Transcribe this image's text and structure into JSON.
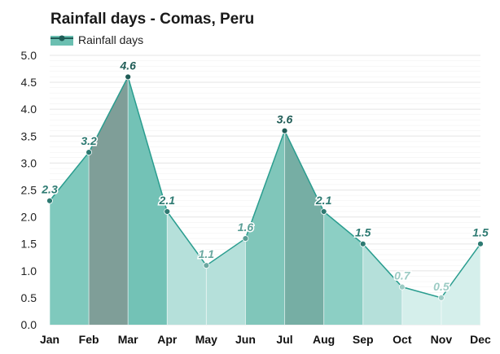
{
  "chart_data": {
    "type": "area",
    "title": "Rainfall days - Comas, Peru",
    "xlabel": "",
    "ylabel": "",
    "categories": [
      "Jan",
      "Feb",
      "Mar",
      "Apr",
      "May",
      "Jun",
      "Jul",
      "Aug",
      "Sep",
      "Oct",
      "Nov",
      "Dec"
    ],
    "series": [
      {
        "name": "Rainfall days",
        "values": [
          2.3,
          3.2,
          4.6,
          2.1,
          1.1,
          1.6,
          3.6,
          2.1,
          1.5,
          0.7,
          0.5,
          1.5
        ]
      }
    ],
    "ylim": [
      0,
      5.0
    ],
    "yticks": [
      "0.0",
      "0.5",
      "1.0",
      "1.5",
      "2.0",
      "2.5",
      "3.0",
      "3.5",
      "4.0",
      "4.5",
      "5.0"
    ],
    "grid": true,
    "legend": "top-left",
    "colors": {
      "line": "#2a9d8f",
      "marker": "#2a9d8f",
      "band_colors": [
        "#7fc9bd",
        "#7f9e98",
        "#73c2b6",
        "#b5e0da",
        "#b5e0da",
        "#80c6ba",
        "#76aea4",
        "#8ccfc4",
        "#b5e0da",
        "#d5efeb",
        "#d5efeb",
        "#9fd6cd"
      ],
      "label_colors": [
        "#2e7a72",
        "#2e7a72",
        "#1f5c56",
        "#2e7a72",
        "#6ba8a0",
        "#5a9e96",
        "#1f5c56",
        "#2e7a72",
        "#2e7a72",
        "#9ccbc4",
        "#9ccbc4",
        "#2e7a72"
      ],
      "legend_swatch": "#6bbfb1",
      "legend_line": "#1f5c56",
      "grid": "#dcdcdc"
    }
  }
}
